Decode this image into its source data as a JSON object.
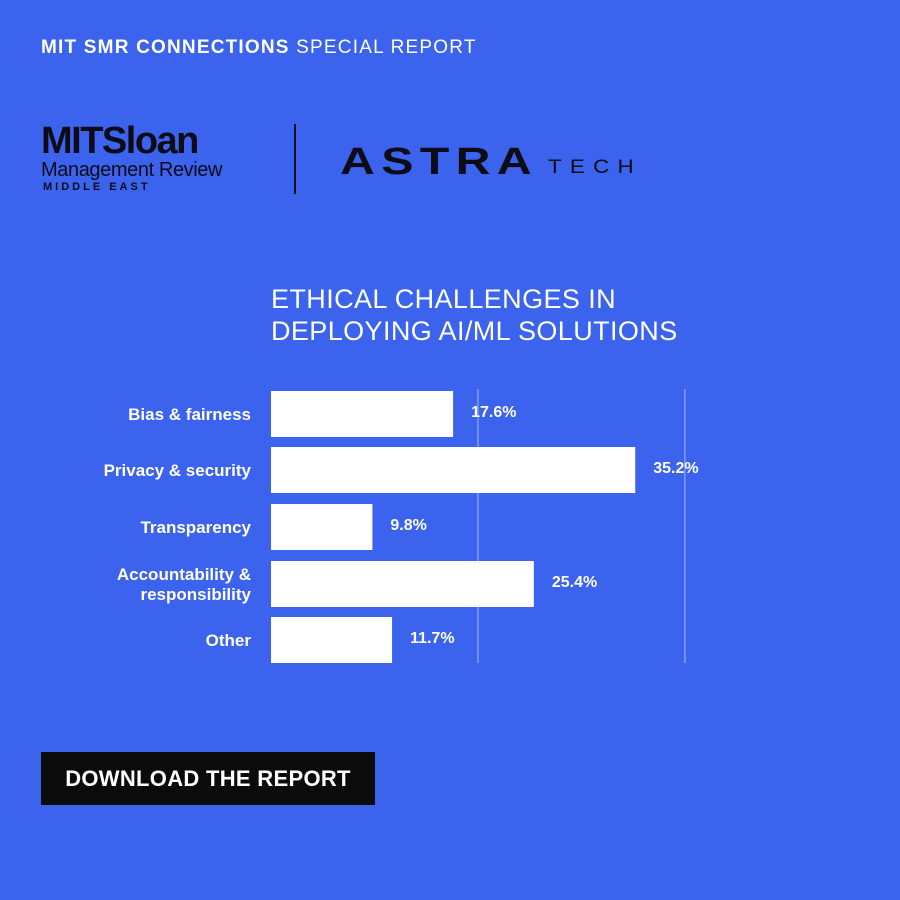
{
  "header": {
    "bold": "MIT SMR CONNECTIONS",
    "light": "SPECIAL REPORT"
  },
  "logos": {
    "mit_line1": "MITSloan",
    "mit_line2": "Management Review",
    "mit_line3": "MIDDLE EAST",
    "astra_main": "ASTRA",
    "astra_sub": "TECH"
  },
  "chart_data": {
    "type": "bar",
    "orientation": "horizontal",
    "title_lines": [
      "ETHICAL CHALLENGES IN",
      "DEPLOYING AI/ML SOLUTIONS"
    ],
    "categories": [
      [
        "Bias & fairness"
      ],
      [
        "Privacy & security"
      ],
      [
        "Transparency"
      ],
      [
        "Accountability &",
        "responsibility"
      ],
      [
        "Other"
      ]
    ],
    "values": [
      17.6,
      35.2,
      9.8,
      25.4,
      11.7
    ],
    "value_labels": [
      "17.6%",
      "35.2%",
      "9.8%",
      "25.4%",
      "11.7%"
    ],
    "xlim": [
      0,
      46
    ],
    "gridlines": [
      20,
      40
    ],
    "colors": {
      "background": "#3b63ee",
      "bar": "#ffffff",
      "text": "#ffffff"
    }
  },
  "cta": {
    "label": "DOWNLOAD THE REPORT"
  }
}
